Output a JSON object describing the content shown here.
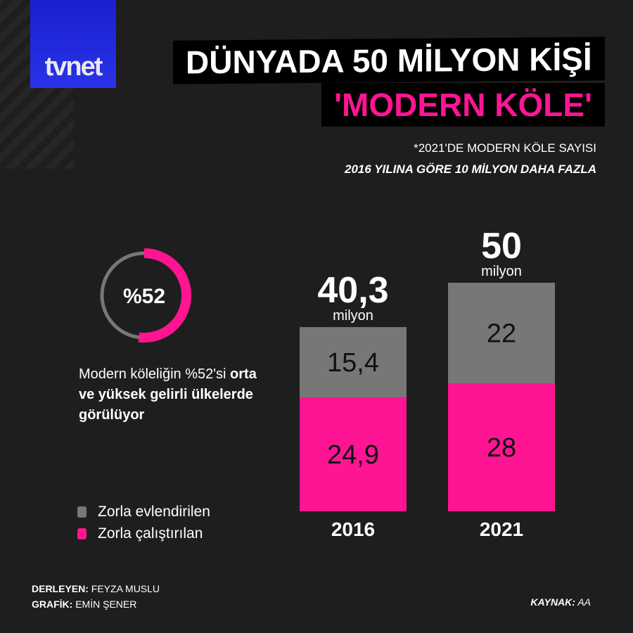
{
  "logo": "tvnet",
  "title": {
    "line1": "DÜNYADA 50 MİLYON KİŞİ",
    "line2": "'MODERN KÖLE'"
  },
  "subtitle": {
    "line1": "*2021'DE MODERN KÖLE SAYISI",
    "line2": "2016 YILINA GÖRE 10 MİLYON DAHA FAZLA"
  },
  "donut": {
    "label": "%52",
    "value": 52,
    "color": "#ff1493",
    "rest_color": "#777777"
  },
  "description": {
    "part1": "Modern köleliğin %52'si ",
    "bold": "orta ve yüksek gelirli ülkelerde görülüyor"
  },
  "chart_data": {
    "type": "bar",
    "stacked": true,
    "categories": [
      "2016",
      "2021"
    ],
    "totals": [
      {
        "value": "40,3",
        "unit": "milyon"
      },
      {
        "value": "50",
        "unit": "milyon"
      }
    ],
    "series": [
      {
        "name": "Zorla çalıştırılan",
        "color": "#ff1493",
        "values": [
          24.9,
          28
        ],
        "labels": [
          "24,9",
          "28"
        ]
      },
      {
        "name": "Zorla evlendirilen",
        "color": "#777777",
        "values": [
          15.4,
          22
        ],
        "labels": [
          "15,4",
          "22"
        ]
      }
    ]
  },
  "legend": [
    {
      "label": "Zorla evlendirilen",
      "color": "#777777"
    },
    {
      "label": "Zorla çalıştırılan",
      "color": "#ff1493"
    }
  ],
  "credits": {
    "compiler_label": "DERLEYEN:",
    "compiler": "FEYZA MUSLU",
    "graphic_label": "GRAFİK:",
    "graphic": "EMİN ŞENER",
    "source_label": "KAYNAK:",
    "source": "AA"
  }
}
